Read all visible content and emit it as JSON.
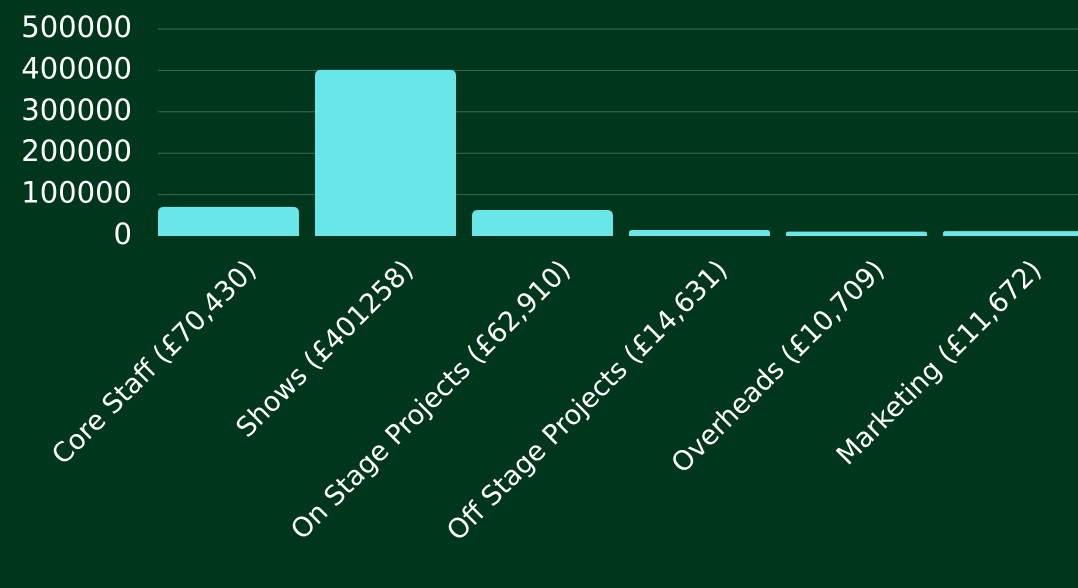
{
  "chart_data": {
    "type": "bar",
    "categories": [
      "Core Staff (£70,430)",
      "Shows (£401258)",
      "On Stage Projects (£62,910)",
      "Off Stage Projects (£14,631)",
      "Overheads (£10,709)",
      "Marketing (£11,672)"
    ],
    "values": [
      70430,
      401258,
      62910,
      14631,
      10709,
      11672
    ],
    "yticks": [
      "0",
      "100000",
      "200000",
      "300000",
      "400000",
      "500000"
    ],
    "ylim": [
      0,
      500000
    ],
    "grid": true,
    "legend": "none",
    "title": "",
    "xlabel": "",
    "ylabel": "",
    "colors": {
      "background": "#00361c",
      "bar": "#69e6e8",
      "grid": "#3f6a4f",
      "text": "#ffffff"
    }
  }
}
